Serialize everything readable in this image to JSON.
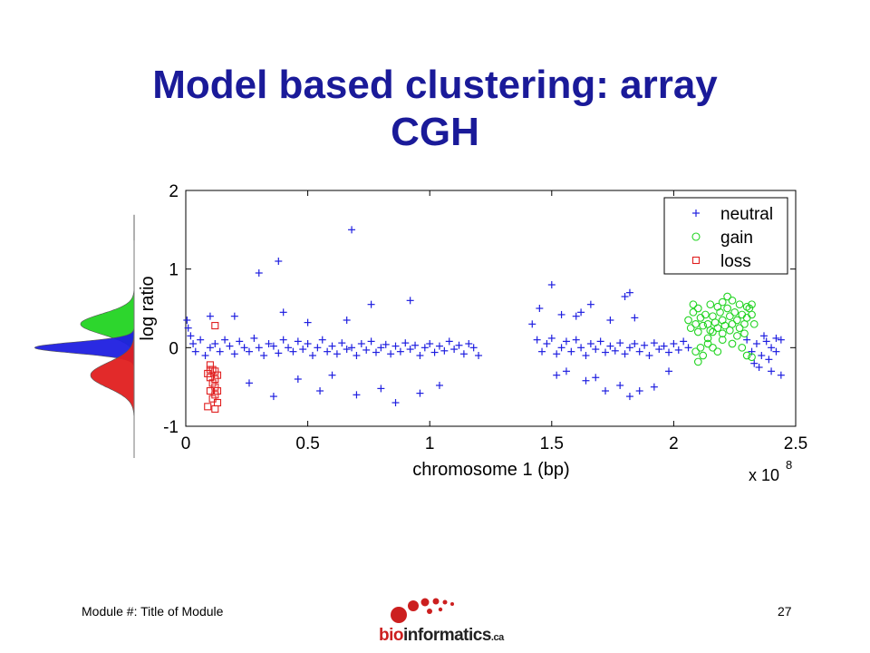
{
  "slide": {
    "title_line1": "Model based clustering: array",
    "title_line2": "CGH",
    "footer_left": "Module #: Title of Module",
    "page_number": "27",
    "logo": {
      "bio": "bio",
      "rest": "informatics",
      "ca": ".ca"
    },
    "colors": {
      "title": "#1a1a99",
      "neutral": "#1f1fe0",
      "gain": "#22d422",
      "loss": "#e01f1f",
      "logo_red": "#cc1f1f"
    }
  },
  "chart_data": {
    "type": "scatter",
    "xlabel": "chromosome 1 (bp)",
    "ylabel": "log ratio",
    "x_multiplier_label": "x 10",
    "x_multiplier_exponent": "8",
    "xlim": [
      0,
      2.5
    ],
    "ylim": [
      -1,
      2
    ],
    "xticks": [
      0,
      0.5,
      1,
      1.5,
      2,
      2.5
    ],
    "xtick_labels": [
      "0",
      "0.5",
      "1",
      "1.5",
      "2",
      "2.5"
    ],
    "yticks": [
      -1,
      0,
      1,
      2
    ],
    "ytick_labels": [
      "-1",
      "0",
      "1",
      "2"
    ],
    "legend_position": "top-right",
    "side_density_curves": [
      {
        "name": "gain",
        "color": "#22d422",
        "mean": 0.3,
        "sd": 0.13
      },
      {
        "name": "neutral",
        "color": "#1f1fe0",
        "mean": 0.0,
        "sd": 0.07
      },
      {
        "name": "loss",
        "color": "#e01f1f",
        "mean": -0.35,
        "sd": 0.16
      }
    ],
    "series": [
      {
        "name": "neutral",
        "marker": "plus",
        "color": "#1f1fe0",
        "points": [
          [
            0.005,
            0.35
          ],
          [
            0.01,
            0.25
          ],
          [
            0.02,
            0.15
          ],
          [
            0.03,
            0.05
          ],
          [
            0.04,
            -0.05
          ],
          [
            0.06,
            0.1
          ],
          [
            0.08,
            -0.1
          ],
          [
            0.1,
            0.0
          ],
          [
            0.12,
            0.05
          ],
          [
            0.14,
            -0.05
          ],
          [
            0.16,
            0.1
          ],
          [
            0.18,
            0.02
          ],
          [
            0.2,
            -0.08
          ],
          [
            0.22,
            0.08
          ],
          [
            0.24,
            0.0
          ],
          [
            0.26,
            -0.05
          ],
          [
            0.28,
            0.12
          ],
          [
            0.3,
            0.0
          ],
          [
            0.32,
            -0.1
          ],
          [
            0.34,
            0.05
          ],
          [
            0.36,
            0.02
          ],
          [
            0.38,
            -0.07
          ],
          [
            0.4,
            0.1
          ],
          [
            0.42,
            0.0
          ],
          [
            0.44,
            -0.05
          ],
          [
            0.46,
            0.08
          ],
          [
            0.48,
            -0.02
          ],
          [
            0.5,
            0.05
          ],
          [
            0.52,
            -0.1
          ],
          [
            0.54,
            0.0
          ],
          [
            0.56,
            0.1
          ],
          [
            0.58,
            -0.05
          ],
          [
            0.6,
            0.02
          ],
          [
            0.62,
            -0.08
          ],
          [
            0.64,
            0.06
          ],
          [
            0.66,
            -0.02
          ],
          [
            0.68,
            0.0
          ],
          [
            0.7,
            -0.1
          ],
          [
            0.72,
            0.05
          ],
          [
            0.74,
            -0.03
          ],
          [
            0.76,
            0.08
          ],
          [
            0.78,
            -0.06
          ],
          [
            0.8,
            0.0
          ],
          [
            0.82,
            0.04
          ],
          [
            0.84,
            -0.08
          ],
          [
            0.86,
            0.02
          ],
          [
            0.88,
            -0.05
          ],
          [
            0.9,
            0.06
          ],
          [
            0.92,
            -0.02
          ],
          [
            0.94,
            0.03
          ],
          [
            0.96,
            -0.1
          ],
          [
            0.98,
            0.0
          ],
          [
            1.0,
            0.05
          ],
          [
            1.02,
            -0.06
          ],
          [
            1.04,
            0.02
          ],
          [
            1.06,
            -0.04
          ],
          [
            1.08,
            0.08
          ],
          [
            1.1,
            -0.02
          ],
          [
            1.12,
            0.03
          ],
          [
            1.14,
            -0.08
          ],
          [
            1.16,
            0.05
          ],
          [
            1.18,
            0.0
          ],
          [
            1.2,
            -0.1
          ],
          [
            0.3,
            0.95
          ],
          [
            0.38,
            1.1
          ],
          [
            0.68,
            1.5
          ],
          [
            0.76,
            0.55
          ],
          [
            0.92,
            0.6
          ],
          [
            0.4,
            0.45
          ],
          [
            0.2,
            0.4
          ],
          [
            0.5,
            0.32
          ],
          [
            0.66,
            0.35
          ],
          [
            0.1,
            0.4
          ],
          [
            0.36,
            -0.62
          ],
          [
            0.55,
            -0.55
          ],
          [
            0.7,
            -0.6
          ],
          [
            0.8,
            -0.52
          ],
          [
            0.86,
            -0.7
          ],
          [
            0.96,
            -0.58
          ],
          [
            0.26,
            -0.45
          ],
          [
            1.04,
            -0.48
          ],
          [
            0.46,
            -0.4
          ],
          [
            0.6,
            -0.35
          ],
          [
            1.42,
            0.3
          ],
          [
            1.44,
            0.1
          ],
          [
            1.46,
            -0.05
          ],
          [
            1.48,
            0.05
          ],
          [
            1.5,
            0.12
          ],
          [
            1.52,
            -0.08
          ],
          [
            1.54,
            0.0
          ],
          [
            1.56,
            0.08
          ],
          [
            1.58,
            -0.05
          ],
          [
            1.6,
            0.1
          ],
          [
            1.62,
            0.0
          ],
          [
            1.64,
            -0.1
          ],
          [
            1.66,
            0.05
          ],
          [
            1.68,
            -0.02
          ],
          [
            1.7,
            0.08
          ],
          [
            1.72,
            -0.06
          ],
          [
            1.74,
            0.02
          ],
          [
            1.76,
            -0.04
          ],
          [
            1.78,
            0.06
          ],
          [
            1.8,
            -0.08
          ],
          [
            1.82,
            0.0
          ],
          [
            1.84,
            0.05
          ],
          [
            1.86,
            -0.05
          ],
          [
            1.88,
            0.03
          ],
          [
            1.9,
            -0.1
          ],
          [
            1.92,
            0.06
          ],
          [
            1.94,
            -0.02
          ],
          [
            1.96,
            0.02
          ],
          [
            1.98,
            -0.06
          ],
          [
            2.0,
            0.05
          ],
          [
            2.02,
            -0.03
          ],
          [
            2.04,
            0.08
          ],
          [
            2.06,
            0.0
          ],
          [
            1.5,
            0.8
          ],
          [
            1.66,
            0.55
          ],
          [
            1.8,
            0.65
          ],
          [
            1.82,
            0.7
          ],
          [
            1.6,
            0.4
          ],
          [
            1.74,
            0.35
          ],
          [
            1.84,
            0.38
          ],
          [
            1.62,
            0.45
          ],
          [
            1.54,
            0.42
          ],
          [
            1.45,
            0.5
          ],
          [
            1.52,
            -0.35
          ],
          [
            1.64,
            -0.42
          ],
          [
            1.72,
            -0.55
          ],
          [
            1.78,
            -0.48
          ],
          [
            1.82,
            -0.62
          ],
          [
            1.86,
            -0.55
          ],
          [
            1.92,
            -0.5
          ],
          [
            1.98,
            -0.3
          ],
          [
            1.56,
            -0.3
          ],
          [
            1.68,
            -0.38
          ],
          [
            2.3,
            0.1
          ],
          [
            2.32,
            -0.05
          ],
          [
            2.34,
            0.05
          ],
          [
            2.36,
            -0.1
          ],
          [
            2.38,
            0.08
          ],
          [
            2.4,
            0.0
          ],
          [
            2.42,
            -0.05
          ],
          [
            2.44,
            0.1
          ],
          [
            2.33,
            -0.2
          ],
          [
            2.37,
            0.15
          ],
          [
            2.4,
            -0.3
          ],
          [
            2.44,
            -0.35
          ],
          [
            2.35,
            -0.25
          ],
          [
            2.42,
            0.12
          ],
          [
            2.39,
            -0.15
          ]
        ]
      },
      {
        "name": "gain",
        "marker": "circle",
        "color": "#22d422",
        "points": [
          [
            2.06,
            0.35
          ],
          [
            2.07,
            0.25
          ],
          [
            2.08,
            0.45
          ],
          [
            2.09,
            0.3
          ],
          [
            2.1,
            0.2
          ],
          [
            2.11,
            0.38
          ],
          [
            2.12,
            0.28
          ],
          [
            2.13,
            0.42
          ],
          [
            2.14,
            0.3
          ],
          [
            2.15,
            0.22
          ],
          [
            2.16,
            0.4
          ],
          [
            2.17,
            0.32
          ],
          [
            2.18,
            0.25
          ],
          [
            2.19,
            0.45
          ],
          [
            2.2,
            0.35
          ],
          [
            2.21,
            0.28
          ],
          [
            2.22,
            0.5
          ],
          [
            2.23,
            0.4
          ],
          [
            2.24,
            0.3
          ],
          [
            2.25,
            0.45
          ],
          [
            2.26,
            0.35
          ],
          [
            2.27,
            0.25
          ],
          [
            2.28,
            0.42
          ],
          [
            2.29,
            0.3
          ],
          [
            2.3,
            0.38
          ],
          [
            2.31,
            0.5
          ],
          [
            2.32,
            0.42
          ],
          [
            2.33,
            0.3
          ],
          [
            2.08,
            0.55
          ],
          [
            2.1,
            0.5
          ],
          [
            2.15,
            0.55
          ],
          [
            2.2,
            0.58
          ],
          [
            2.22,
            0.65
          ],
          [
            2.24,
            0.6
          ],
          [
            2.27,
            0.55
          ],
          [
            2.3,
            0.52
          ],
          [
            2.32,
            0.55
          ],
          [
            2.18,
            0.52
          ],
          [
            2.09,
            -0.05
          ],
          [
            2.11,
            0.0
          ],
          [
            2.12,
            -0.1
          ],
          [
            2.14,
            0.05
          ],
          [
            2.16,
            0.0
          ],
          [
            2.18,
            -0.05
          ],
          [
            2.2,
            0.1
          ],
          [
            2.24,
            0.05
          ],
          [
            2.28,
            0.0
          ],
          [
            2.3,
            -0.1
          ],
          [
            2.32,
            -0.12
          ],
          [
            2.1,
            -0.18
          ],
          [
            2.14,
            0.12
          ],
          [
            2.26,
            0.15
          ],
          [
            2.2,
            0.18
          ],
          [
            2.16,
            0.2
          ],
          [
            2.23,
            0.22
          ],
          [
            2.29,
            0.18
          ]
        ]
      },
      {
        "name": "loss",
        "marker": "square",
        "color": "#e01f1f",
        "points": [
          [
            0.12,
            0.28
          ],
          [
            0.1,
            -0.22
          ],
          [
            0.11,
            -0.28
          ],
          [
            0.12,
            -0.3
          ],
          [
            0.13,
            -0.35
          ],
          [
            0.09,
            -0.33
          ],
          [
            0.1,
            -0.38
          ],
          [
            0.11,
            -0.45
          ],
          [
            0.12,
            -0.5
          ],
          [
            0.13,
            -0.55
          ],
          [
            0.1,
            -0.55
          ],
          [
            0.12,
            -0.6
          ],
          [
            0.09,
            -0.75
          ],
          [
            0.12,
            -0.78
          ],
          [
            0.13,
            -0.7
          ],
          [
            0.11,
            -0.65
          ],
          [
            0.12,
            -0.4
          ],
          [
            0.1,
            -0.28
          ]
        ]
      }
    ]
  }
}
